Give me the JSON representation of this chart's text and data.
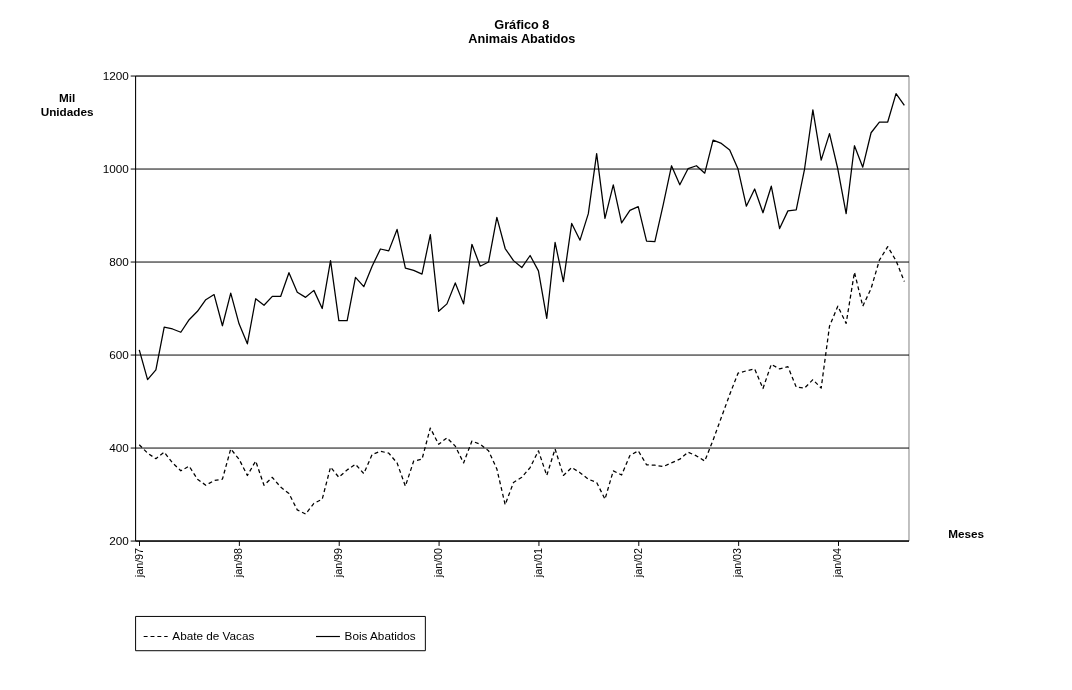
{
  "chart_data": {
    "type": "line",
    "title": "Gráfico 8",
    "subtitle": "Animais Abatidos",
    "ylabel": "Mil Unidades",
    "xlabel": "Meses",
    "categories": [
      "jan/97",
      null,
      null,
      null,
      null,
      null,
      null,
      null,
      null,
      null,
      null,
      null,
      "jan/98",
      null,
      null,
      null,
      null,
      null,
      null,
      null,
      null,
      null,
      null,
      null,
      "jan/99",
      null,
      null,
      null,
      null,
      null,
      null,
      null,
      null,
      null,
      null,
      null,
      "jan/00",
      null,
      null,
      null,
      null,
      null,
      null,
      null,
      null,
      null,
      null,
      null,
      "jan/01",
      null,
      null,
      null,
      null,
      null,
      null,
      null,
      null,
      null,
      null,
      null,
      "jan/02",
      null,
      null,
      null,
      null,
      null,
      null,
      null,
      null,
      null,
      null,
      null,
      "jan/03",
      null,
      null,
      null,
      null,
      null,
      null,
      null,
      null,
      null,
      null,
      null,
      "jan/04",
      null,
      null,
      null,
      null,
      null,
      null,
      null,
      null
    ],
    "ylim": [
      200,
      1200
    ],
    "yticks": [
      200,
      400,
      600,
      800,
      1000,
      1200
    ],
    "grid": "y",
    "legend": "bottom",
    "series": [
      {
        "name": "Abate de Vacas",
        "color": "#000000",
        "line_style": "dashed",
        "values": [
          406,
          388,
          376,
          390,
          367,
          350,
          360,
          332,
          319,
          329,
          332,
          397,
          375,
          340,
          371,
          319,
          336,
          315,
          301,
          266,
          257,
          280,
          289,
          358,
          336,
          352,
          364,
          344,
          385,
          392,
          388,
          367,
          317,
          371,
          375,
          442,
          407,
          421,
          403,
          367,
          414,
          407,
          393,
          354,
          277,
          325,
          336,
          357,
          393,
          340,
          397,
          340,
          357,
          346,
          332,
          325,
          289,
          350,
          341,
          383,
          393,
          363,
          362,
          359,
          367,
          375,
          390,
          382,
          371,
          416,
          465,
          514,
          560,
          565,
          569,
          527,
          579,
          569,
          574,
          530,
          528,
          546,
          528,
          661,
          704,
          667,
          777,
          704,
          742,
          803,
          832,
          802,
          757
        ]
      },
      {
        "name": "Bois Abatidos",
        "color": "#000000",
        "line_style": "solid",
        "values": [
          610,
          546,
          567,
          659,
          655,
          648,
          675,
          693,
          718,
          729,
          662,
          732,
          666,
          623,
          720,
          706,
          725,
          725,
          776,
          734,
          723,
          738,
          699,
          802,
          673,
          673,
          766,
          746,
          790,
          827,
          823,
          869,
          786,
          781,
          773,
          858,
          693,
          709,
          754,
          709,
          837,
          790,
          799,
          895,
          828,
          802,
          787,
          813,
          780,
          678,
          841,
          757,
          882,
          846,
          903,
          1032,
          893,
          965,
          883,
          910,
          918,
          844,
          843,
          922,
          1006,
          965,
          1000,
          1006,
          990,
          1061,
          1054,
          1040,
          999,
          919,
          956,
          905,
          962,
          871,
          909,
          911,
          999,
          1126,
          1018,
          1075,
          999,
          903,
          1049,
          1003,
          1077,
          1100,
          1100,
          1161,
          1136
        ]
      }
    ]
  }
}
